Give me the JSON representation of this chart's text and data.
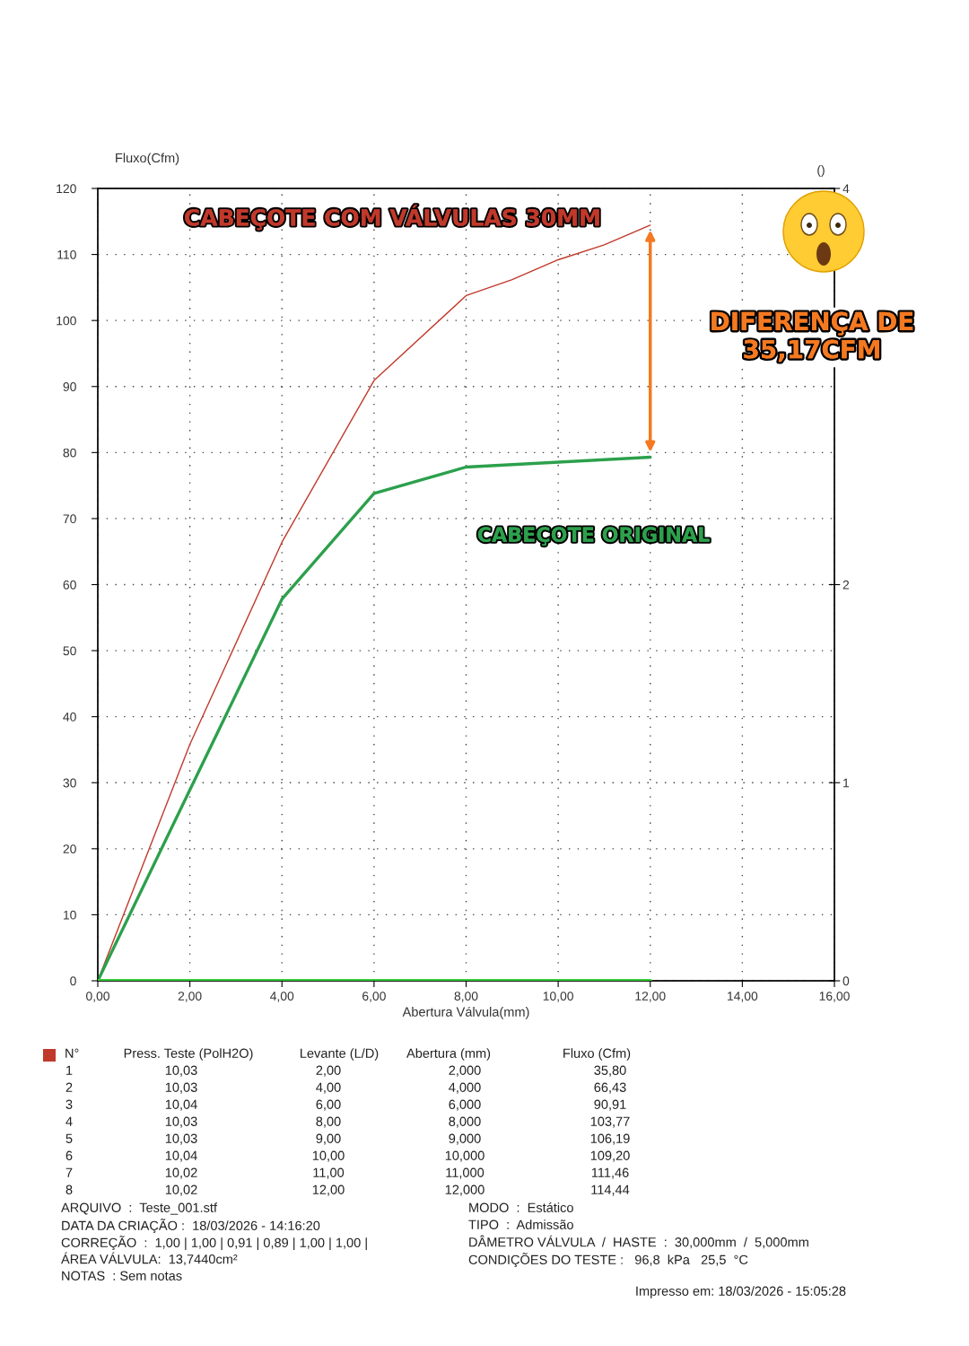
{
  "chart_data": {
    "type": "line",
    "xlabel": "Abertura Válvula(mm)",
    "ylabel": "Fluxo(Cfm)",
    "y2label": "()",
    "xlim": [
      0,
      16
    ],
    "xticks": [
      {
        "value": 0,
        "label": "0,00"
      },
      {
        "value": 2,
        "label": "2,00"
      },
      {
        "value": 4,
        "label": "4,00"
      },
      {
        "value": 6,
        "label": "6,00"
      },
      {
        "value": 8,
        "label": "8,00"
      },
      {
        "value": 10,
        "label": "10,00"
      },
      {
        "value": 12,
        "label": "12,00"
      },
      {
        "value": 14,
        "label": "14,00"
      },
      {
        "value": 16,
        "label": "16,00"
      }
    ],
    "ylim": [
      0,
      120
    ],
    "yticks": [
      0,
      10,
      20,
      30,
      40,
      50,
      60,
      70,
      80,
      90,
      100,
      110,
      120
    ],
    "y2lim": [
      0,
      4
    ],
    "y2ticks": [
      0,
      1,
      2,
      4
    ],
    "grid": true,
    "series": [
      {
        "name": "CABEÇOTE COM VÁLVULAS 30MM",
        "color": "#c0392b",
        "x": [
          0,
          2,
          4,
          6,
          8,
          9,
          10,
          11,
          12
        ],
        "values": [
          0,
          35.8,
          66.43,
          90.91,
          103.77,
          106.19,
          109.2,
          111.46,
          114.44
        ]
      },
      {
        "name": "CABEÇOTE ORIGINAL",
        "color": "#2ca04c",
        "x": [
          0,
          2,
          4,
          6,
          8,
          12
        ],
        "values": [
          0,
          28.9,
          57.8,
          73.8,
          77.8,
          79.3
        ]
      },
      {
        "color": "#33cc33",
        "x": [
          0,
          12
        ],
        "values": [
          0,
          0
        ],
        "axis": "y2"
      }
    ],
    "annotations": [
      "DIFERENÇA DE\n35,17CFM",
      "N°",
      "Press. Teste (PolH2O)",
      "Levante (L/D)",
      "Abertura (mm)",
      "Fluxo (Cfm)",
      "1",
      "10,03",
      "2,00",
      "2,000",
      "35,80",
      "2",
      "10,03",
      "4,00",
      "4,000",
      "66,43",
      "3",
      "10,04",
      "6,00",
      "6,000",
      "90,91",
      "4",
      "10,03",
      "8,00",
      "8,000",
      "103,77",
      "5",
      "10,03",
      "9,00",
      "9,000",
      "106,19",
      "6",
      "10,04",
      "10,00",
      "10,000",
      "109,20",
      "7",
      "10,02",
      "11,00",
      "11,000",
      "111,46",
      "8",
      "10,02",
      "12,00",
      "12,000",
      "114,44",
      "ARQUIVO  :  Teste_001.stf",
      "DATA DA CRIAÇÃO :  18/03/2026 - 14:16:20",
      "CORREÇÃO  :  1,00 | 1,00 | 0,91 | 0,89 | 1,00 | 1,00 |",
      "ÁREA VÁLVULA:  13,7440cm²",
      "NOTAS  : Sem notas",
      "MODO  :  Estático",
      "TIPO  :  Admissão",
      "DÂMETRO VÁLVULA  /  HASTE  :  30,000mm  /  5,000mm",
      "CONDIÇÕES DO TESTE :   96,8  kPa   25,5  °C",
      "Impresso em: 18/03/2026 - 15:05:28"
    ]
  }
}
